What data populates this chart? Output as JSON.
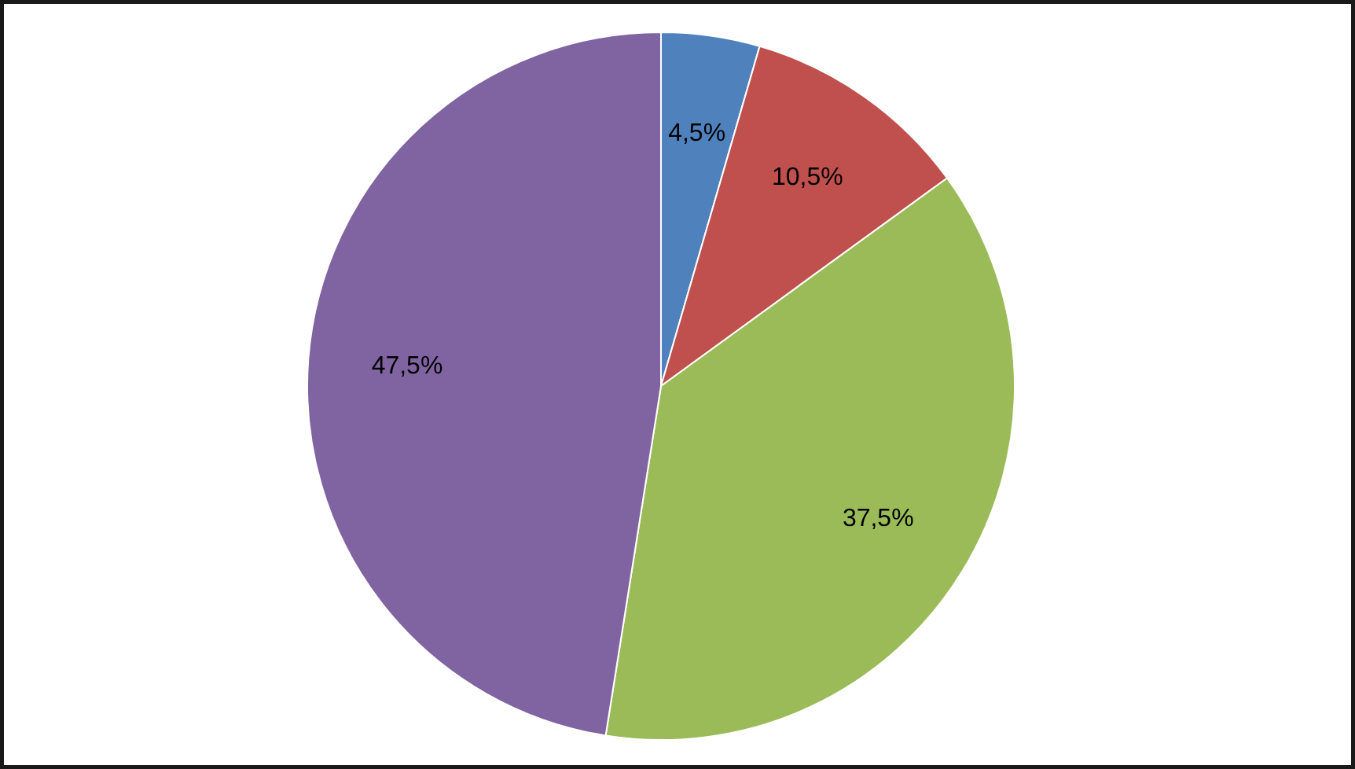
{
  "chart_data": {
    "type": "pie",
    "categories": [
      null,
      null,
      null,
      null
    ],
    "values": [
      4.5,
      10.5,
      37.5,
      47.5
    ],
    "value_labels": [
      "4,5%",
      "10,5%",
      "37,5%",
      "47,5%"
    ],
    "colors": [
      "#4f81bd",
      "#c0504d",
      "#9bbb59",
      "#8064a2"
    ]
  }
}
